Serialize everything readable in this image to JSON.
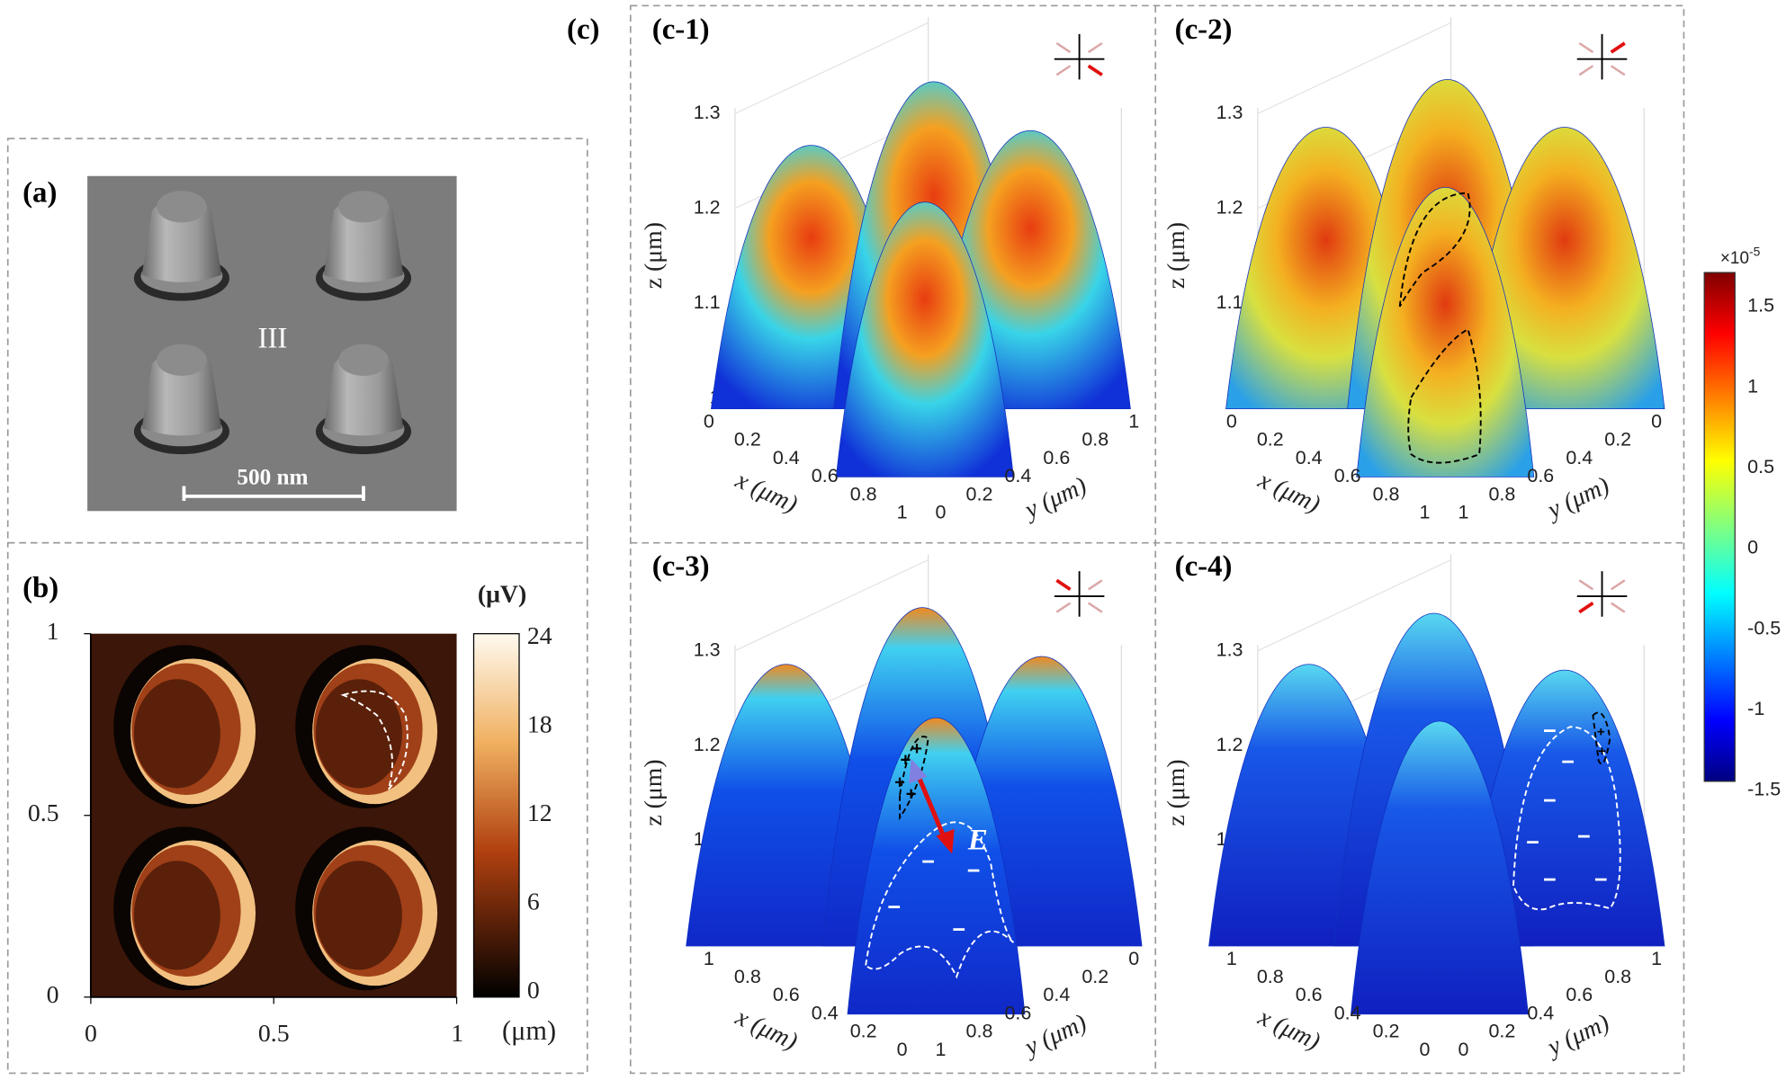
{
  "panel_a": {
    "label": "(a)",
    "region_label": "III",
    "scale_bar": "500 nm"
  },
  "panel_b": {
    "label": "(b)",
    "y_ticks": [
      "1",
      "0.5",
      "0"
    ],
    "x_ticks": [
      "0",
      "0.5",
      "1"
    ],
    "x_unit": "(μm)",
    "colorbar_unit": "(μV)",
    "colorbar_ticks": [
      "24",
      "18",
      "12",
      "6",
      "0"
    ]
  },
  "panel_c": {
    "label": "(c)",
    "subpanels": [
      {
        "label": "(c-1)",
        "z_label": "z (μm)",
        "z_ticks": [
          "1.3",
          "1.2",
          "1.1",
          "1"
        ],
        "x_label": "x (μm)",
        "x_ticks": [
          "0",
          "0.2",
          "0.4",
          "0.6",
          "0.8",
          "1"
        ],
        "y_label": "y (μm)",
        "y_ticks": [
          "0",
          "0.2",
          "0.4",
          "0.6",
          "0.8",
          "1"
        ]
      },
      {
        "label": "(c-2)",
        "z_label": "z (μm)",
        "z_ticks": [
          "1.3",
          "1.2",
          "1.1",
          "1"
        ],
        "x_label": "x (μm)",
        "x_ticks": [
          "0",
          "0.2",
          "0.4",
          "0.6",
          "0.8",
          "1"
        ],
        "y_label": "y (μm)",
        "y_ticks": [
          "1",
          "0.8",
          "0.6",
          "0.4",
          "0.2",
          "0"
        ]
      },
      {
        "label": "(c-3)",
        "z_label": "z (μm)",
        "z_ticks": [
          "1.3",
          "1.2",
          "1.1",
          "1"
        ],
        "x_label": "x (μm)",
        "x_ticks": [
          "1",
          "0.8",
          "0.6",
          "0.4",
          "0.2",
          "0"
        ],
        "y_label": "y (μm)",
        "y_ticks": [
          "1",
          "0.8",
          "0.6",
          "0.4",
          "0.2",
          "0"
        ]
      },
      {
        "label": "(c-4)",
        "z_label": "z (μm)",
        "z_ticks": [
          "1.3",
          "1.2",
          "1.1",
          "1"
        ],
        "x_label": "x (μm)",
        "x_ticks": [
          "1",
          "0.8",
          "0.6",
          "0.4",
          "0.2",
          "0"
        ],
        "y_label": "y (μm)",
        "y_ticks": [
          "0",
          "0.2",
          "0.4",
          "0.6",
          "0.8",
          "1"
        ]
      }
    ],
    "field_label": "E",
    "charge_plus": "+",
    "charge_minus": "−",
    "colorbar": {
      "exponent_base": "×10",
      "exponent_power": "-5",
      "ticks": [
        "1.5",
        "1",
        "0.5",
        "0",
        "-0.5",
        "-1",
        "-1.5"
      ]
    }
  }
}
